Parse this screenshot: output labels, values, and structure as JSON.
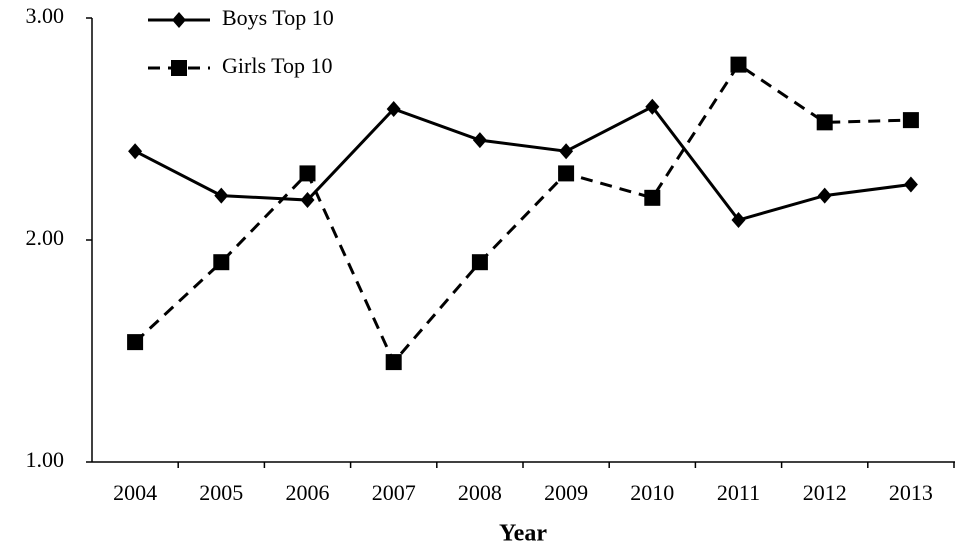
{
  "chart_data": {
    "type": "line",
    "x_label": "Year",
    "categories": [
      "2004",
      "2005",
      "2006",
      "2007",
      "2008",
      "2009",
      "2010",
      "2011",
      "2012",
      "2013"
    ],
    "series": [
      {
        "name": "Boys Top 10",
        "color": "#000000",
        "line_style": "solid",
        "marker": "diamond",
        "values": [
          2.4,
          2.2,
          2.18,
          2.59,
          2.45,
          2.4,
          2.6,
          2.09,
          2.2,
          2.25
        ]
      },
      {
        "name": "Girls Top 10",
        "color": "#000000",
        "line_style": "dashed",
        "marker": "square",
        "values": [
          1.54,
          1.9,
          2.3,
          1.45,
          1.9,
          2.3,
          2.19,
          2.79,
          2.53,
          2.54
        ]
      }
    ],
    "ylim": [
      1,
      3
    ],
    "yticks": [
      {
        "value": 1,
        "label": "1.00"
      },
      {
        "value": 2,
        "label": "2.00"
      },
      {
        "value": 3,
        "label": "3.00"
      }
    ],
    "grid": false,
    "legend": "top-left"
  }
}
